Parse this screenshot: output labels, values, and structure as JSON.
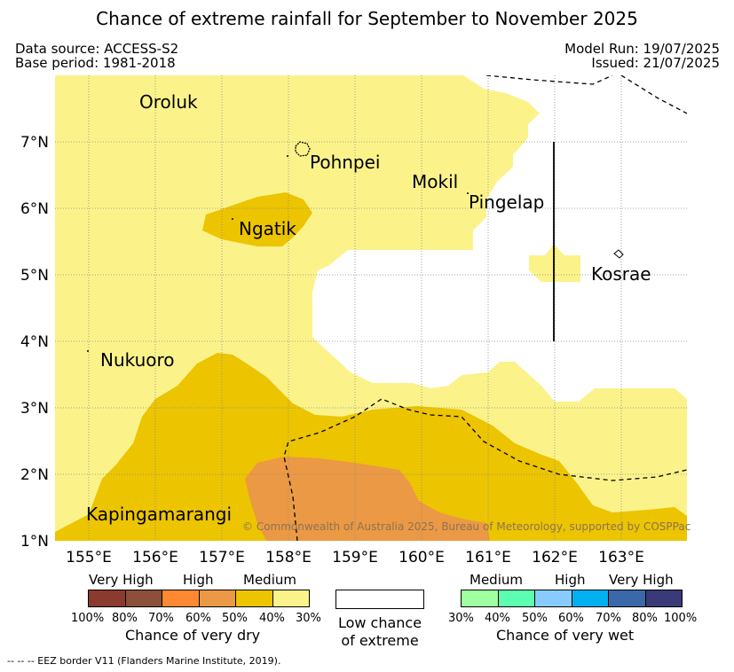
{
  "header": {
    "title": "Chance of extreme rainfall for September to November 2025",
    "data_source": "Data source: ACCESS-S2",
    "base_period": "Base period: 1981-2018",
    "model_run": "Model Run: 19/07/2025",
    "issued": "Issued: 21/07/2025"
  },
  "map": {
    "lon_range": [
      154.5,
      164.0
    ],
    "lat_range": [
      1.0,
      8.0
    ],
    "lon_ticks": [
      "155°E",
      "156°E",
      "157°E",
      "158°E",
      "159°E",
      "160°E",
      "161°E",
      "162°E",
      "163°E"
    ],
    "lat_ticks": [
      "1°N",
      "2°N",
      "3°N",
      "4°N",
      "5°N",
      "6°N",
      "7°N"
    ],
    "places": [
      {
        "name": "Oroluk"
      },
      {
        "name": "Pohnpei"
      },
      {
        "name": "Mokil"
      },
      {
        "name": "Pingelap"
      },
      {
        "name": "Ngatik"
      },
      {
        "name": "Kosrae"
      },
      {
        "name": "Nukuoro"
      },
      {
        "name": "Kapingamarangi"
      }
    ],
    "credit": "© Commonwealth of Australia 2025, Bureau of Meteorology, supported by COSPPac"
  },
  "legend": {
    "dry": {
      "headers": [
        "Very High",
        "High",
        "Medium"
      ],
      "colors": [
        "#8b3a30",
        "#8b4f3a",
        "#ff8833",
        "#eb9944",
        "#ecc400",
        "#fbf38a"
      ],
      "ticks": [
        "100%",
        "80%",
        "70%",
        "60%",
        "50%",
        "40%",
        "30%"
      ],
      "title": "Chance of very dry"
    },
    "low": {
      "line1": "Low chance",
      "line2": "of extreme"
    },
    "wet": {
      "headers": [
        "Medium",
        "High",
        "Very High"
      ],
      "colors": [
        "#a0ffa0",
        "#5cffb0",
        "#88ccff",
        "#00b0f0",
        "#3a68a8",
        "#3a3a78"
      ],
      "ticks": [
        "30%",
        "40%",
        "50%",
        "60%",
        "70%",
        "80%",
        "100%"
      ],
      "title": "Chance of very wet"
    },
    "eez_note": "-- -- -- EEZ border V11 (Flanders Marine Institute, 2019)."
  }
}
